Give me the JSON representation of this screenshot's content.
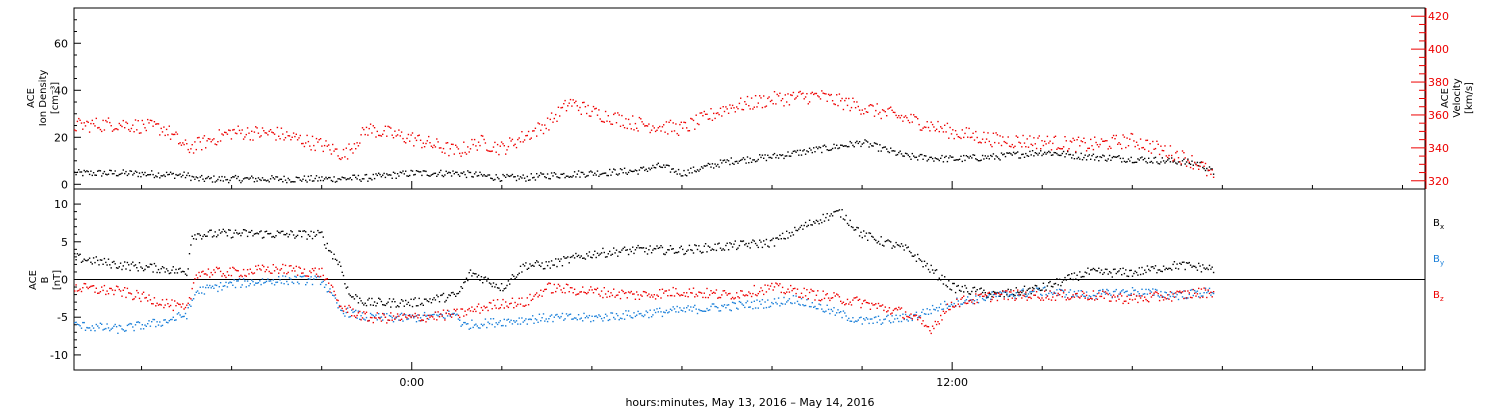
{
  "chart_data": [
    {
      "type": "scatter",
      "panel": "top",
      "left_axis_label": [
        "ACE",
        "Ion Density",
        "[cm⁻³]"
      ],
      "right_axis_label": [
        "ACE",
        "Velocity",
        "[km/s]"
      ],
      "y_left_ticks": [
        "0",
        "20",
        "40",
        "60"
      ],
      "y_left_range": [
        -2,
        75
      ],
      "y_right_ticks": [
        "320",
        "340",
        "360",
        "380",
        "400",
        "420"
      ],
      "y_right_range": [
        315,
        425
      ],
      "series": [
        {
          "axis": "left",
          "color": "#000000",
          "x_hours": [
            -7.5,
            -6.5,
            -5.5,
            -5,
            -4.8,
            -4,
            -3,
            -2,
            -1,
            0,
            1,
            2,
            2.5,
            3,
            4,
            5,
            5.5,
            6,
            7,
            8,
            9,
            10,
            11,
            12,
            13,
            14,
            15,
            16,
            17,
            17.5,
            17.8
          ],
          "values": [
            5,
            5,
            4.5,
            4,
            2.5,
            2.5,
            2.5,
            2.5,
            3,
            5,
            5,
            3,
            3,
            4,
            5,
            6,
            8,
            5,
            10,
            12,
            15,
            18,
            12,
            11,
            12,
            14,
            12,
            11,
            10,
            9,
            5
          ]
        },
        {
          "axis": "right",
          "color": "#ee0000",
          "x_hours": [
            -7.5,
            -6.5,
            -5.5,
            -5,
            -4,
            -3,
            -2,
            -1.5,
            -1,
            0,
            1,
            1.5,
            2,
            3,
            3.5,
            4,
            5,
            6,
            7,
            8,
            9,
            10,
            11,
            12,
            13,
            14,
            15,
            16,
            17,
            17.5,
            17.8
          ],
          "values": [
            354,
            355,
            352,
            340,
            350,
            349,
            342,
            336,
            352,
            346,
            338,
            344,
            340,
            355,
            368,
            362,
            355,
            352,
            365,
            370,
            372,
            365,
            358,
            350,
            345,
            344,
            342,
            345,
            336,
            330,
            322
          ]
        }
      ]
    },
    {
      "type": "scatter",
      "panel": "bottom",
      "left_axis_label": [
        "ACE",
        "B",
        "[nT]"
      ],
      "y_left_ticks": [
        "-10",
        "-5",
        "0",
        "5",
        "10"
      ],
      "y_left_range": [
        -12,
        12
      ],
      "x_ticks": [
        "0:00",
        "12:00"
      ],
      "x_range_hours": [
        -7.5,
        22.5
      ],
      "xlabel": "hours:minutes, May 13, 2016 – May 14, 2016",
      "legend": [
        {
          "name": "Bx",
          "color": "#000000"
        },
        {
          "name": "By",
          "color": "#1a7fd9"
        },
        {
          "name": "Bz",
          "color": "#ee0000"
        }
      ],
      "series": [
        {
          "name": "Bx",
          "color": "#000000",
          "x_hours": [
            -7.5,
            -6.5,
            -5.5,
            -5,
            -4.9,
            -4,
            -3,
            -2,
            -1.9,
            -1.6,
            -1.4,
            -1,
            0,
            1,
            1.3,
            2,
            2.5,
            3,
            4,
            5,
            6,
            7,
            8,
            9,
            9.5,
            10,
            11,
            12,
            13,
            14,
            15,
            16,
            17,
            17.8
          ],
          "values": [
            3,
            2,
            1.5,
            1,
            6,
            6.2,
            6.1,
            6,
            4.5,
            2,
            -2,
            -3,
            -3,
            -2,
            1,
            -1,
            2,
            2,
            3.5,
            4,
            4,
            4.5,
            5,
            8,
            9,
            6,
            4,
            -1,
            -2,
            -1,
            1,
            1,
            2,
            1.5
          ]
        },
        {
          "name": "By",
          "color": "#1a7fd9",
          "x_hours": [
            -7.5,
            -6.5,
            -5.5,
            -5,
            -4.8,
            -4,
            -3,
            -2,
            -1.6,
            -1,
            0,
            1,
            1.1,
            2,
            3,
            4,
            5,
            6,
            7,
            8,
            8.5,
            9,
            10,
            11,
            12,
            13,
            14,
            15,
            16,
            17,
            17.8
          ],
          "values": [
            -6,
            -6.5,
            -5.5,
            -4.5,
            -1.5,
            -0.5,
            0,
            0,
            -4,
            -5,
            -5,
            -4.5,
            -6,
            -5.5,
            -5,
            -5,
            -4.5,
            -4,
            -3.5,
            -3,
            -2.5,
            -3.5,
            -5.5,
            -5,
            -3,
            -2,
            -1.5,
            -2,
            -1.5,
            -2,
            -1.5
          ]
        },
        {
          "name": "Bz",
          "color": "#ee0000",
          "x_hours": [
            -7.5,
            -6.5,
            -5.5,
            -5,
            -4.8,
            -4,
            -3,
            -2,
            -1.6,
            -1,
            0,
            1,
            2,
            2.5,
            3,
            4,
            5,
            6,
            7,
            8,
            9,
            9.5,
            10,
            11,
            11.5,
            12,
            13,
            14,
            15,
            16,
            17,
            17.8
          ],
          "values": [
            -1,
            -1.5,
            -3,
            -4,
            1,
            1,
            1.5,
            1,
            -3.5,
            -5,
            -5,
            -4.5,
            -3,
            -3,
            -1,
            -1.5,
            -2,
            -1.5,
            -2,
            -1,
            -2,
            -2.5,
            -3,
            -4.5,
            -6.5,
            -3,
            -2,
            -2,
            -2,
            -2.5,
            -2,
            -1.5
          ]
        }
      ]
    }
  ]
}
